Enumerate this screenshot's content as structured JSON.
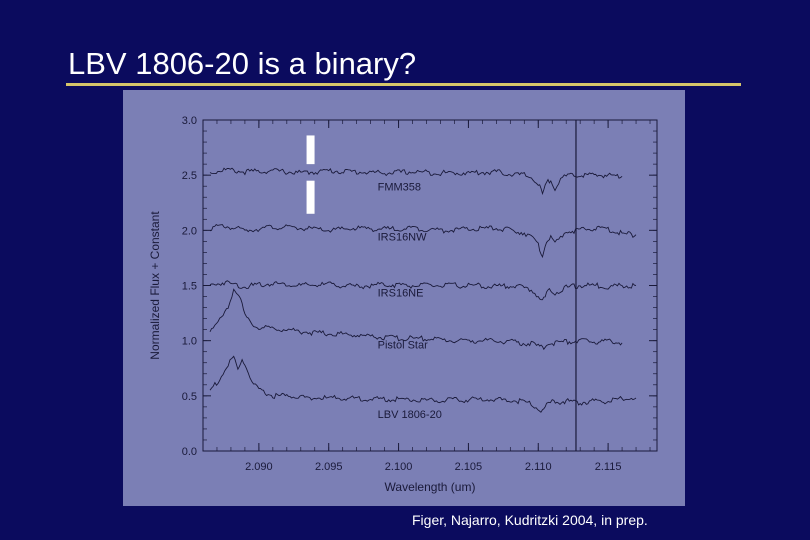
{
  "slide": {
    "title": "LBV 1806-20 is a binary?",
    "credit": "Figer, Najarro, Kudritzki 2004, in prep."
  },
  "colors": {
    "background": "#0b0b5e",
    "title_rule": "#d6c66a",
    "plot_background": "#7b7fb5",
    "line": "#1a1a3a",
    "marker": "#ffffff"
  },
  "chart_data": {
    "type": "line",
    "xlabel": "Wavelength (um)",
    "ylabel": "Normalized Flux + Constant",
    "xlim": [
      2.086,
      2.1185
    ],
    "ylim": [
      0.0,
      3.0
    ],
    "x_ticks": [
      "2.090",
      "2.095",
      "2.100",
      "2.105",
      "2.110",
      "2.115"
    ],
    "y_ticks": [
      "0.0",
      "0.5",
      "1.0",
      "1.5",
      "2.0",
      "2.5",
      "3.0"
    ],
    "vertical_reference_line_x": 2.1127,
    "markers": [
      {
        "x": 2.0937,
        "y_range": [
          2.6,
          2.86
        ]
      },
      {
        "x": 2.0937,
        "y_range": [
          2.15,
          2.45
        ]
      }
    ],
    "series": [
      {
        "name": "FMM358",
        "label_at": [
          2.0985,
          2.36
        ],
        "points": [
          [
            2.0865,
            2.52
          ],
          [
            2.0875,
            2.55
          ],
          [
            2.089,
            2.53
          ],
          [
            2.091,
            2.54
          ],
          [
            2.093,
            2.52
          ],
          [
            2.095,
            2.54
          ],
          [
            2.097,
            2.53
          ],
          [
            2.099,
            2.52
          ],
          [
            2.101,
            2.53
          ],
          [
            2.103,
            2.52
          ],
          [
            2.105,
            2.52
          ],
          [
            2.107,
            2.53
          ],
          [
            2.108,
            2.51
          ],
          [
            2.109,
            2.5
          ],
          [
            2.1095,
            2.48
          ],
          [
            2.11,
            2.42
          ],
          [
            2.1103,
            2.33
          ],
          [
            2.1106,
            2.42
          ],
          [
            2.1109,
            2.47
          ],
          [
            2.1112,
            2.38
          ],
          [
            2.1116,
            2.46
          ],
          [
            2.112,
            2.49
          ],
          [
            2.113,
            2.5
          ],
          [
            2.114,
            2.5
          ],
          [
            2.115,
            2.5
          ],
          [
            2.116,
            2.49
          ]
        ]
      },
      {
        "name": "IRS16NW",
        "label_at": [
          2.0985,
          1.91
        ],
        "points": [
          [
            2.0865,
            2.02
          ],
          [
            2.0875,
            2.04
          ],
          [
            2.089,
            2.0
          ],
          [
            2.091,
            2.03
          ],
          [
            2.093,
            2.02
          ],
          [
            2.095,
            2.0
          ],
          [
            2.097,
            2.02
          ],
          [
            2.099,
            2.01
          ],
          [
            2.101,
            2.02
          ],
          [
            2.103,
            2.0
          ],
          [
            2.105,
            2.01
          ],
          [
            2.107,
            2.02
          ],
          [
            2.108,
            2.0
          ],
          [
            2.109,
            1.98
          ],
          [
            2.1095,
            1.94
          ],
          [
            2.11,
            1.86
          ],
          [
            2.1103,
            1.78
          ],
          [
            2.1106,
            1.9
          ],
          [
            2.1109,
            1.95
          ],
          [
            2.1112,
            1.87
          ],
          [
            2.1116,
            1.94
          ],
          [
            2.112,
            1.99
          ],
          [
            2.113,
            2.0
          ],
          [
            2.114,
            2.02
          ],
          [
            2.115,
            2.01
          ],
          [
            2.116,
            1.97
          ],
          [
            2.117,
            1.96
          ]
        ]
      },
      {
        "name": "IRS16NE",
        "label_at": [
          2.0985,
          1.4
        ],
        "points": [
          [
            2.0865,
            1.5
          ],
          [
            2.0875,
            1.53
          ],
          [
            2.089,
            1.49
          ],
          [
            2.091,
            1.52
          ],
          [
            2.093,
            1.5
          ],
          [
            2.095,
            1.51
          ],
          [
            2.097,
            1.49
          ],
          [
            2.099,
            1.51
          ],
          [
            2.101,
            1.5
          ],
          [
            2.103,
            1.5
          ],
          [
            2.105,
            1.5
          ],
          [
            2.107,
            1.49
          ],
          [
            2.108,
            1.5
          ],
          [
            2.109,
            1.48
          ],
          [
            2.1095,
            1.46
          ],
          [
            2.11,
            1.41
          ],
          [
            2.1103,
            1.35
          ],
          [
            2.1106,
            1.42
          ],
          [
            2.1109,
            1.47
          ],
          [
            2.1112,
            1.43
          ],
          [
            2.1116,
            1.46
          ],
          [
            2.112,
            1.48
          ],
          [
            2.113,
            1.5
          ],
          [
            2.114,
            1.5
          ],
          [
            2.115,
            1.49
          ],
          [
            2.116,
            1.5
          ],
          [
            2.117,
            1.5
          ]
        ]
      },
      {
        "name": "Pistol Star",
        "label_at": [
          2.0985,
          0.93
        ],
        "points": [
          [
            2.0865,
            1.1
          ],
          [
            2.0872,
            1.18
          ],
          [
            2.0878,
            1.3
          ],
          [
            2.0882,
            1.48
          ],
          [
            2.0885,
            1.43
          ],
          [
            2.0888,
            1.32
          ],
          [
            2.089,
            1.22
          ],
          [
            2.0895,
            1.15
          ],
          [
            2.09,
            1.12
          ],
          [
            2.092,
            1.1
          ],
          [
            2.094,
            1.07
          ],
          [
            2.096,
            1.06
          ],
          [
            2.098,
            1.04
          ],
          [
            2.1,
            1.02
          ],
          [
            2.102,
            1.02
          ],
          [
            2.104,
            1.0
          ],
          [
            2.106,
            1.0
          ],
          [
            2.108,
            0.99
          ],
          [
            2.1095,
            0.97
          ],
          [
            2.11,
            0.95
          ],
          [
            2.1103,
            0.93
          ],
          [
            2.1106,
            0.97
          ],
          [
            2.111,
            0.98
          ],
          [
            2.112,
            0.99
          ],
          [
            2.113,
            1.0
          ],
          [
            2.114,
            0.99
          ],
          [
            2.115,
            1.0
          ],
          [
            2.116,
            0.98
          ]
        ]
      },
      {
        "name": "LBV 1806-20",
        "label_at": [
          2.0985,
          0.3
        ],
        "points": [
          [
            2.0865,
            0.55
          ],
          [
            2.0872,
            0.65
          ],
          [
            2.0878,
            0.78
          ],
          [
            2.0882,
            0.85
          ],
          [
            2.0885,
            0.73
          ],
          [
            2.0888,
            0.83
          ],
          [
            2.0891,
            0.76
          ],
          [
            2.0895,
            0.62
          ],
          [
            2.09,
            0.55
          ],
          [
            2.091,
            0.5
          ],
          [
            2.092,
            0.5
          ],
          [
            2.094,
            0.48
          ],
          [
            2.096,
            0.48
          ],
          [
            2.098,
            0.47
          ],
          [
            2.1,
            0.47
          ],
          [
            2.102,
            0.46
          ],
          [
            2.104,
            0.46
          ],
          [
            2.106,
            0.47
          ],
          [
            2.108,
            0.46
          ],
          [
            2.109,
            0.45
          ],
          [
            2.1095,
            0.43
          ],
          [
            2.1103,
            0.35
          ],
          [
            2.1106,
            0.42
          ],
          [
            2.111,
            0.44
          ],
          [
            2.112,
            0.45
          ],
          [
            2.113,
            0.44
          ],
          [
            2.114,
            0.45
          ],
          [
            2.115,
            0.45
          ],
          [
            2.116,
            0.47
          ],
          [
            2.117,
            0.48
          ]
        ]
      }
    ]
  }
}
